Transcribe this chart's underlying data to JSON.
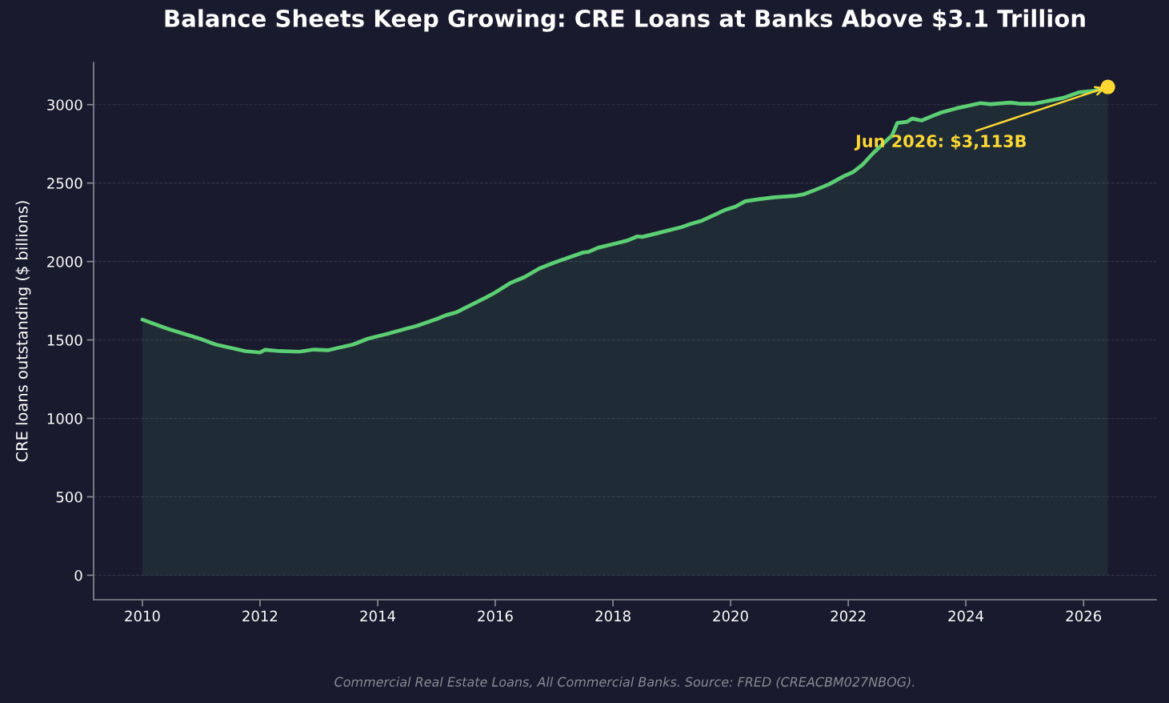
{
  "chart_data": {
    "type": "area",
    "title": "Balance Sheets Keep Growing: CRE Loans at Banks Above $3.1 Trillion",
    "ylabel": "CRE loans outstanding ($ billions)",
    "series": [
      {
        "color": "#5ccf74",
        "x": [
          "2010-01",
          "2010-06",
          "2011-01",
          "2011-04",
          "2011-10",
          "2012-01",
          "2012-02",
          "2012-05",
          "2012-09",
          "2012-12",
          "2013-03",
          "2013-08",
          "2013-11",
          "2014-03",
          "2014-07",
          "2014-09",
          "2015-01",
          "2015-03",
          "2015-05",
          "2015-11",
          "2016-01",
          "2016-04",
          "2016-07",
          "2016-10",
          "2017-01",
          "2017-07",
          "2017-08",
          "2017-10",
          "2018-04",
          "2018-06",
          "2018-07",
          "2018-10",
          "2019-03",
          "2019-05",
          "2019-07",
          "2019-10",
          "2019-12",
          "2020-02",
          "2020-04",
          "2020-07",
          "2020-10",
          "2021-02",
          "2021-04",
          "2021-06",
          "2021-09",
          "2021-12",
          "2022-02",
          "2022-04",
          "2022-06",
          "2022-08",
          "2022-10",
          "2022-11",
          "2023-01",
          "2023-02",
          "2023-04",
          "2023-06",
          "2023-08",
          "2023-11",
          "2024-04",
          "2024-06",
          "2024-10",
          "2024-12",
          "2025-03",
          "2025-09",
          "2025-12",
          "2026-03",
          "2026-06"
        ],
        "values": [
          1630,
          1573,
          1505,
          1471,
          1429,
          1420,
          1437,
          1429,
          1425,
          1439,
          1435,
          1471,
          1508,
          1539,
          1573,
          1590,
          1633,
          1658,
          1675,
          1769,
          1803,
          1862,
          1901,
          1956,
          1993,
          2058,
          2061,
          2088,
          2134,
          2160,
          2157,
          2180,
          2219,
          2240,
          2258,
          2301,
          2330,
          2350,
          2384,
          2398,
          2410,
          2418,
          2429,
          2453,
          2491,
          2542,
          2571,
          2619,
          2687,
          2747,
          2806,
          2883,
          2891,
          2911,
          2899,
          2925,
          2950,
          2976,
          3010,
          3003,
          3013,
          3006,
          3006,
          3044,
          3078,
          3087,
          3113
        ]
      },
      {
        "type": "scatter",
        "color": "#fdd835",
        "marker": "circle",
        "x": [
          "2026-06"
        ],
        "values": [
          3113
        ]
      }
    ],
    "xlim": [
      "2009-03-04",
      "2027-03-28"
    ],
    "xticks": [
      "2010",
      "2012",
      "2014",
      "2016",
      "2018",
      "2020",
      "2022",
      "2024",
      "2026"
    ],
    "ylim": [
      -156,
      3269
    ],
    "yticks": [
      0,
      500,
      1000,
      1500,
      2000,
      2500,
      3000
    ],
    "grid": "y",
    "annotations": [
      {
        "text": "Jun 2026: $3,113B",
        "x": "2026-06",
        "y": 3113
      },
      "Commercial Real Estate Loans, All Commercial Banks. Source: FRED (CREACBM027NBOG)."
    ]
  }
}
